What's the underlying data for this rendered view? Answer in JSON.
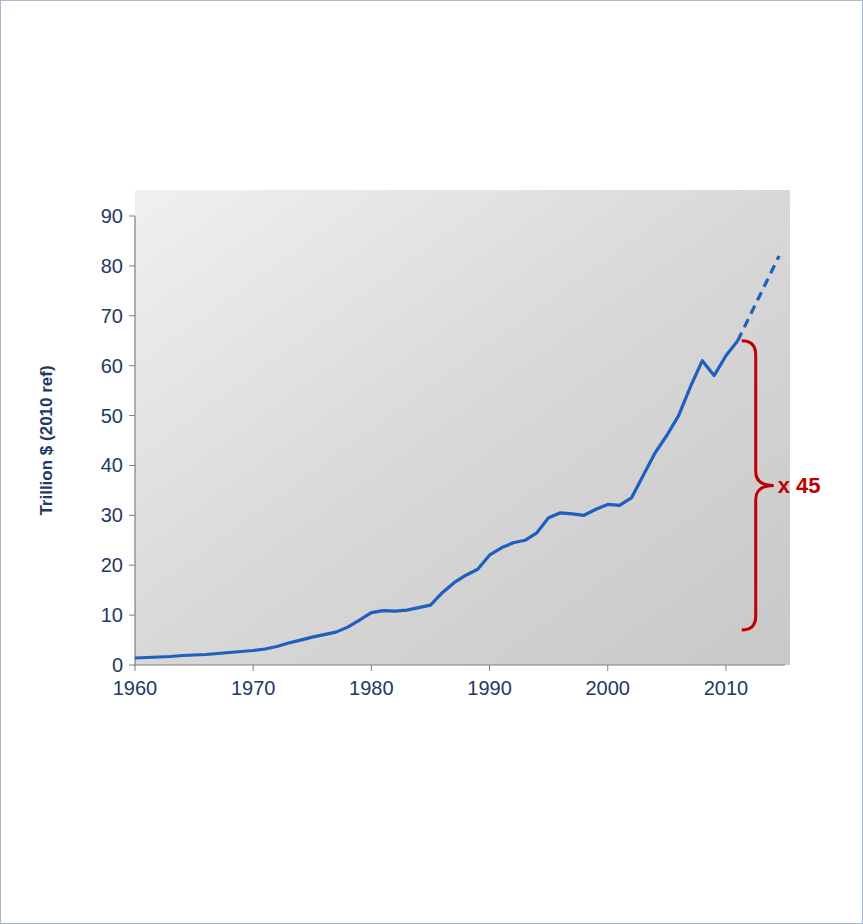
{
  "chart_data": {
    "type": "line",
    "y_label": "Trillion $ (2010 ref)",
    "xlim": [
      1960,
      2015
    ],
    "xticks": [
      1960,
      1970,
      1980,
      1990,
      2000,
      2010
    ],
    "ylim": [
      0,
      90
    ],
    "yticks": [
      0,
      10,
      20,
      30,
      40,
      50,
      60,
      70,
      80,
      90
    ],
    "grid": false,
    "series": [
      {
        "color": "#1f5fc0",
        "line_style": "solid",
        "x": [
          1960,
          1961,
          1962,
          1963,
          1964,
          1965,
          1966,
          1967,
          1968,
          1969,
          1970,
          1971,
          1972,
          1973,
          1974,
          1975,
          1976,
          1977,
          1978,
          1979,
          1980,
          1981,
          1982,
          1983,
          1984,
          1985,
          1986,
          1987,
          1988,
          1989,
          1990,
          1991,
          1992,
          1993,
          1994,
          1995,
          1996,
          1997,
          1998,
          1999,
          2000,
          2001,
          2002,
          2003,
          2004,
          2005,
          2006,
          2007,
          2008,
          2009,
          2010,
          2011
        ],
        "values": [
          1.4,
          1.5,
          1.6,
          1.7,
          1.9,
          2.0,
          2.1,
          2.3,
          2.5,
          2.7,
          2.9,
          3.2,
          3.7,
          4.4,
          5.0,
          5.6,
          6.1,
          6.6,
          7.6,
          9.0,
          10.5,
          10.9,
          10.8,
          11.0,
          11.5,
          12.0,
          14.5,
          16.5,
          18.0,
          19.2,
          22.0,
          23.5,
          24.5,
          25.0,
          26.5,
          29.5,
          30.5,
          30.3,
          30.0,
          31.2,
          32.2,
          32.0,
          33.5,
          38.0,
          42.5,
          46.0,
          50.0,
          55.8,
          61.0,
          58.0,
          62.0,
          65.0
        ]
      },
      {
        "color": "#1f5fc0",
        "line_style": "dashed",
        "x": [
          2011,
          2014.5
        ],
        "values": [
          65,
          82
        ]
      }
    ],
    "annotations": [
      {
        "text": "x 45",
        "x": 2011,
        "from": 7,
        "to": 65,
        "color": "#c00000"
      }
    ]
  }
}
